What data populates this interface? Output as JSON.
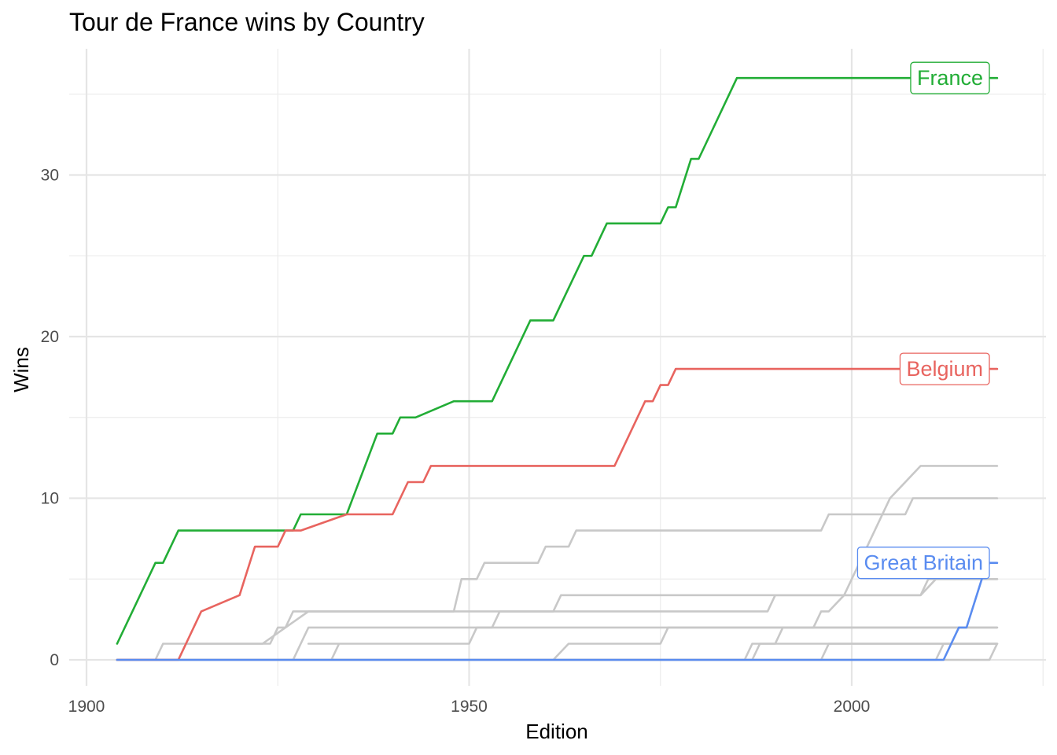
{
  "chart_data": {
    "type": "line",
    "title": "Tour de France wins by Country",
    "xlabel": "Edition",
    "ylabel": "Wins",
    "xlim": [
      1900,
      2025
    ],
    "ylim": [
      0,
      36
    ],
    "x_ticks": [
      1900,
      1950,
      2000
    ],
    "y_ticks": [
      0,
      10,
      20,
      30
    ],
    "grid": true,
    "legend": "direct labels at line ends",
    "series": [
      {
        "name": "",
        "highlight": false,
        "color": "#c8c8c8",
        "points": [
          [
            1904,
            0
          ],
          [
            1909,
            0
          ],
          [
            1910,
            1
          ],
          [
            1924,
            1
          ],
          [
            1925,
            2
          ],
          [
            1926,
            2
          ],
          [
            1927,
            3
          ],
          [
            1948,
            3
          ],
          [
            1949,
            5
          ],
          [
            1951,
            5
          ],
          [
            1952,
            6
          ],
          [
            1959,
            6
          ],
          [
            1960,
            7
          ],
          [
            1963,
            7
          ],
          [
            1964,
            8
          ],
          [
            1995,
            8
          ],
          [
            1996,
            8
          ],
          [
            1997,
            9
          ],
          [
            2007,
            9
          ],
          [
            2008,
            10
          ],
          [
            2019,
            10
          ]
        ]
      },
      {
        "name": "",
        "highlight": false,
        "color": "#c8c8c8",
        "points": [
          [
            1904,
            0
          ],
          [
            1927,
            0
          ],
          [
            1928,
            1
          ],
          [
            1929,
            2
          ],
          [
            1931,
            2
          ],
          [
            1953,
            2
          ],
          [
            1954,
            3
          ],
          [
            1989,
            3
          ],
          [
            1990,
            4
          ],
          [
            1995,
            4
          ],
          [
            1996,
            4
          ],
          [
            2009,
            4
          ],
          [
            2011,
            5
          ],
          [
            2019,
            5
          ]
        ]
      },
      {
        "name": "",
        "highlight": false,
        "color": "#c8c8c8",
        "points": [
          [
            1904,
            0
          ],
          [
            1932,
            0
          ],
          [
            1933,
            1
          ],
          [
            1929,
            1
          ],
          [
            1950,
            1
          ],
          [
            1951,
            2
          ],
          [
            1955,
            2
          ],
          [
            1976,
            2
          ],
          [
            2019,
            2
          ]
        ]
      },
      {
        "name": "",
        "highlight": false,
        "color": "#c8c8c8",
        "points": [
          [
            1904,
            0
          ],
          [
            1912,
            0
          ],
          [
            1913,
            1
          ],
          [
            1921,
            1
          ],
          [
            1923,
            1
          ],
          [
            1926,
            2
          ],
          [
            1929,
            3
          ],
          [
            1937,
            3
          ],
          [
            1938,
            3
          ],
          [
            1961,
            3
          ],
          [
            1962,
            4
          ],
          [
            2009,
            4
          ],
          [
            2010,
            5
          ],
          [
            2019,
            5
          ]
        ]
      },
      {
        "name": "",
        "highlight": false,
        "color": "#c8c8c8",
        "points": [
          [
            1904,
            0
          ],
          [
            1961,
            0
          ],
          [
            1963,
            1
          ],
          [
            1969,
            1
          ],
          [
            1970,
            1
          ],
          [
            1971,
            1
          ],
          [
            1975,
            1
          ],
          [
            1976,
            2
          ],
          [
            1982,
            2
          ],
          [
            1983,
            2
          ],
          [
            1985,
            2
          ],
          [
            1986,
            2
          ],
          [
            2019,
            2
          ]
        ]
      },
      {
        "name": "",
        "highlight": false,
        "color": "#c8c8c8",
        "points": [
          [
            1904,
            0
          ],
          [
            1986,
            0
          ],
          [
            1987,
            1
          ],
          [
            1990,
            1
          ],
          [
            1991,
            2
          ],
          [
            1995,
            2
          ],
          [
            1996,
            3
          ],
          [
            1997,
            3
          ],
          [
            1999,
            4
          ],
          [
            2005,
            10
          ],
          [
            2009,
            12
          ],
          [
            2019,
            12
          ]
        ]
      },
      {
        "name": "",
        "highlight": false,
        "color": "#c8c8c8",
        "points": [
          [
            1904,
            0
          ],
          [
            1987,
            0
          ],
          [
            1988,
            1
          ],
          [
            1998,
            1
          ],
          [
            2019,
            1
          ]
        ]
      },
      {
        "name": "",
        "highlight": false,
        "color": "#c8c8c8",
        "points": [
          [
            1904,
            0
          ],
          [
            1996,
            0
          ],
          [
            1997,
            1
          ],
          [
            2019,
            1
          ]
        ]
      },
      {
        "name": "",
        "highlight": false,
        "color": "#c8c8c8",
        "points": [
          [
            1904,
            0
          ],
          [
            2011,
            0
          ],
          [
            2012,
            1
          ],
          [
            2017,
            1
          ],
          [
            2018,
            1
          ],
          [
            2019,
            1
          ]
        ]
      },
      {
        "name": "",
        "highlight": false,
        "color": "#c8c8c8",
        "points": [
          [
            1904,
            0
          ],
          [
            2018,
            0
          ],
          [
            2019,
            1
          ]
        ]
      },
      {
        "name": "France",
        "highlight": true,
        "color": "#22ad36",
        "points": [
          [
            1904,
            1
          ],
          [
            1909,
            6
          ],
          [
            1910,
            6
          ],
          [
            1912,
            8
          ],
          [
            1926,
            8
          ],
          [
            1927,
            8
          ],
          [
            1928,
            9
          ],
          [
            1934,
            9
          ],
          [
            1938,
            14
          ],
          [
            1940,
            14
          ],
          [
            1941,
            15
          ],
          [
            1943,
            15
          ],
          [
            1948,
            16
          ],
          [
            1953,
            16
          ],
          [
            1958,
            21
          ],
          [
            1961,
            21
          ],
          [
            1965,
            25
          ],
          [
            1966,
            25
          ],
          [
            1968,
            27
          ],
          [
            1975,
            27
          ],
          [
            1976,
            28
          ],
          [
            1977,
            28
          ],
          [
            1979,
            31
          ],
          [
            1980,
            31
          ],
          [
            1985,
            36
          ],
          [
            2019,
            36
          ]
        ]
      },
      {
        "name": "Belgium",
        "highlight": true,
        "color": "#e8645f",
        "points": [
          [
            1904,
            0
          ],
          [
            1912,
            0
          ],
          [
            1915,
            3
          ],
          [
            1920,
            4
          ],
          [
            1922,
            7
          ],
          [
            1925,
            7
          ],
          [
            1926,
            8
          ],
          [
            1928,
            8
          ],
          [
            1934,
            9
          ],
          [
            1940,
            9
          ],
          [
            1942,
            11
          ],
          [
            1944,
            11
          ],
          [
            1945,
            12
          ],
          [
            1969,
            12
          ],
          [
            1973,
            16
          ],
          [
            1974,
            16
          ],
          [
            1975,
            17
          ],
          [
            1976,
            17
          ],
          [
            1977,
            18
          ],
          [
            2019,
            18
          ]
        ]
      },
      {
        "name": "Great Britain",
        "highlight": true,
        "color": "#5a8cf0",
        "points": [
          [
            1904,
            0
          ],
          [
            2012,
            0
          ],
          [
            2014,
            2
          ],
          [
            2015,
            2
          ],
          [
            2017,
            5
          ],
          [
            2018,
            6
          ],
          [
            2019,
            6
          ]
        ]
      }
    ]
  }
}
